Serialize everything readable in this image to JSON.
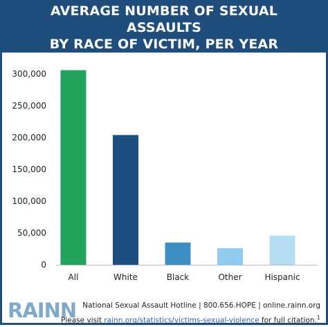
{
  "header": {
    "title_line1": "AVERAGE NUMBER OF SEXUAL ASSAULTS",
    "title_line2": "BY RACE OF VICTIM, PER YEAR"
  },
  "chart_data": {
    "type": "bar",
    "title": "AVERAGE NUMBER OF SEXUAL ASSAULTS BY RACE OF VICTIM, PER YEAR",
    "categories": [
      "All",
      "White",
      "Black",
      "Other",
      "Hispanic"
    ],
    "values": [
      306000,
      204000,
      35000,
      26000,
      46000
    ],
    "colors": [
      "#22a45d",
      "#1c4e80",
      "#3f8fc7",
      "#8fcbee",
      "#b5def2"
    ],
    "yticks": [
      0,
      50000,
      100000,
      150000,
      200000,
      250000,
      300000
    ],
    "ytick_labels": [
      "0",
      "50,000",
      "100,000",
      "150,000",
      "200,000",
      "250,000",
      "300,000"
    ],
    "ylim": [
      0,
      300000
    ],
    "xlabel": "",
    "ylabel": "",
    "grid": false,
    "legend": "none"
  },
  "footer": {
    "logo": "RAINN",
    "line1": "National Sexual Assault Hotline | 800.656.HOPE | online.rainn.org",
    "line2_prefix": "Please visit ",
    "line2_link": "rainn.org/statistics/victims-sexual-violence",
    "line2_suffix": " for full citation.",
    "footnote_mark": "1"
  }
}
